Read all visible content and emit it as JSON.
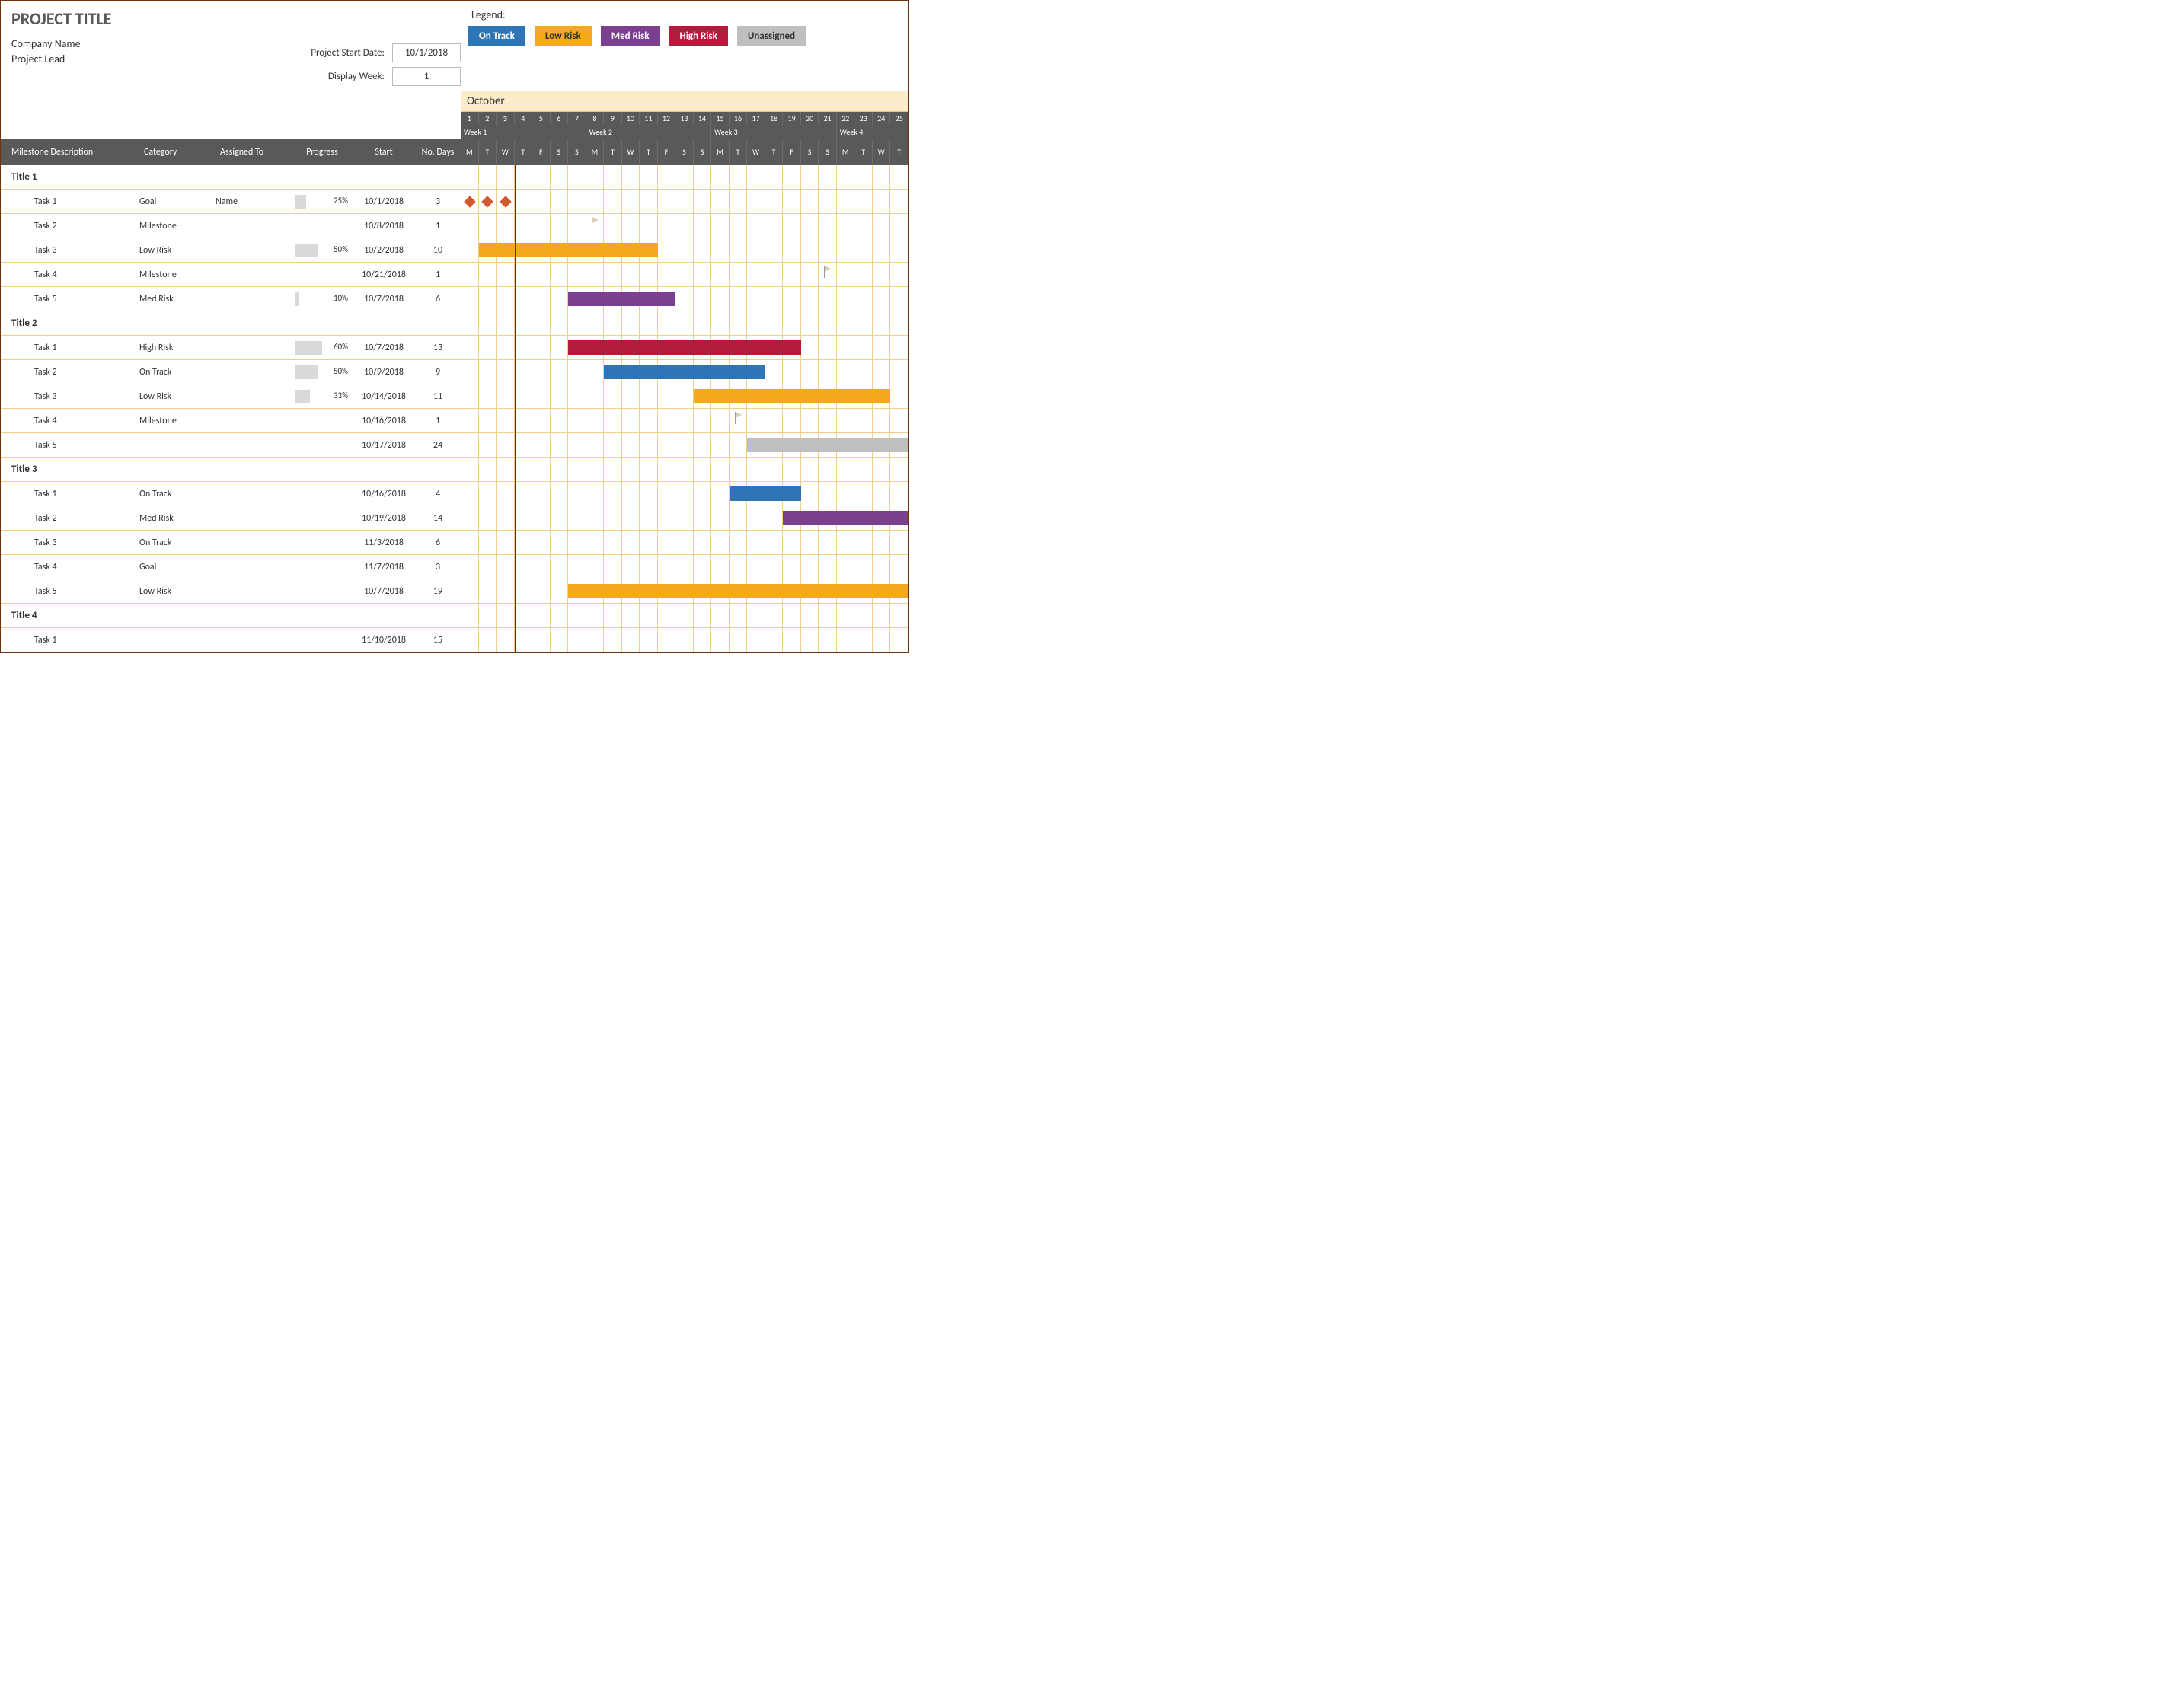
{
  "title": "PROJECT TITLE",
  "company": "Company Name",
  "lead": "Project Lead",
  "inputs": {
    "start_label": "Project Start Date:",
    "start_value": "10/1/2018",
    "week_label": "Display Week:",
    "week_value": "1"
  },
  "legend": {
    "label": "Legend:",
    "items": [
      {
        "label": "On Track",
        "color": "#2e75b6"
      },
      {
        "label": "Low Risk",
        "color": "#f4a81d",
        "text": "#333"
      },
      {
        "label": "Med Risk",
        "color": "#7b3f8f"
      },
      {
        "label": "High Risk",
        "color": "#b51a3c"
      },
      {
        "label": "Unassigned",
        "color": "#bfbfbf",
        "text": "#333"
      }
    ]
  },
  "month": "October",
  "calendar": {
    "total_days": 25,
    "today_col": 3,
    "day_nums": [
      1,
      2,
      3,
      4,
      5,
      6,
      7,
      8,
      9,
      10,
      11,
      12,
      13,
      14,
      15,
      16,
      17,
      18,
      19,
      20,
      21,
      22,
      23,
      24,
      25
    ],
    "weeks": [
      "Week 1",
      "Week 2",
      "Week 3",
      "Week 4"
    ],
    "dow": [
      "M",
      "T",
      "W",
      "T",
      "F",
      "S",
      "S",
      "M",
      "T",
      "W",
      "T",
      "F",
      "S",
      "S",
      "M",
      "T",
      "W",
      "T",
      "F",
      "S",
      "S",
      "M",
      "T",
      "W",
      "T"
    ]
  },
  "columns": {
    "desc": "Milestone Description",
    "cat": "Category",
    "assign": "Assigned To",
    "prog": "Progress",
    "start": "Start",
    "days": "No. Days"
  },
  "colors": {
    "on_track": "#2e75b6",
    "low_risk": "#f4a81d",
    "med_risk": "#7b3f8f",
    "high_risk": "#b51a3c",
    "unassigned": "#bfbfbf",
    "goal_diamond": "#d05a2e",
    "progress_bar": "#d9d9d9",
    "grid_line": "#f0d088",
    "header_bg": "#595959",
    "today_line": "#c00000"
  },
  "sections": [
    {
      "title": "Title 1",
      "tasks": [
        {
          "name": "Task 1",
          "cat": "Goal",
          "assign": "Name",
          "prog": 25,
          "start": "10/1/2018",
          "days": 3,
          "bar": {
            "type": "goal",
            "from": 1,
            "to": 3
          }
        },
        {
          "name": "Task 2",
          "cat": "Milestone",
          "assign": "",
          "prog": null,
          "start": "10/8/2018",
          "days": 1,
          "bar": {
            "type": "milestone",
            "at": 8
          }
        },
        {
          "name": "Task 3",
          "cat": "Low Risk",
          "assign": "",
          "prog": 50,
          "start": "10/2/2018",
          "days": 10,
          "bar": {
            "type": "bar",
            "color": "#f4a81d",
            "from": 2,
            "to": 11
          }
        },
        {
          "name": "Task 4",
          "cat": "Milestone",
          "assign": "",
          "prog": null,
          "start": "10/21/2018",
          "days": 1,
          "bar": {
            "type": "milestone",
            "at": 21
          }
        },
        {
          "name": "Task 5",
          "cat": "Med Risk",
          "assign": "",
          "prog": 10,
          "start": "10/7/2018",
          "days": 6,
          "bar": {
            "type": "bar",
            "color": "#7b3f8f",
            "from": 7,
            "to": 12
          }
        }
      ]
    },
    {
      "title": "Title 2",
      "tasks": [
        {
          "name": "Task 1",
          "cat": "High Risk",
          "assign": "",
          "prog": 60,
          "start": "10/7/2018",
          "days": 13,
          "bar": {
            "type": "bar",
            "color": "#b51a3c",
            "from": 7,
            "to": 19
          }
        },
        {
          "name": "Task 2",
          "cat": "On Track",
          "assign": "",
          "prog": 50,
          "start": "10/9/2018",
          "days": 9,
          "bar": {
            "type": "bar",
            "color": "#2e75b6",
            "from": 9,
            "to": 17
          }
        },
        {
          "name": "Task 3",
          "cat": "Low Risk",
          "assign": "",
          "prog": 33,
          "start": "10/14/2018",
          "days": 11,
          "bar": {
            "type": "bar",
            "color": "#f4a81d",
            "from": 14,
            "to": 24
          }
        },
        {
          "name": "Task 4",
          "cat": "Milestone",
          "assign": "",
          "prog": null,
          "start": "10/16/2018",
          "days": 1,
          "bar": {
            "type": "milestone",
            "at": 16
          }
        },
        {
          "name": "Task 5",
          "cat": "",
          "assign": "",
          "prog": null,
          "start": "10/17/2018",
          "days": 24,
          "bar": {
            "type": "bar",
            "color": "#bfbfbf",
            "from": 17,
            "to": 25
          }
        }
      ]
    },
    {
      "title": "Title 3",
      "tasks": [
        {
          "name": "Task 1",
          "cat": "On Track",
          "assign": "",
          "prog": null,
          "start": "10/16/2018",
          "days": 4,
          "bar": {
            "type": "bar",
            "color": "#2e75b6",
            "from": 16,
            "to": 19
          }
        },
        {
          "name": "Task 2",
          "cat": "Med Risk",
          "assign": "",
          "prog": null,
          "start": "10/19/2018",
          "days": 14,
          "bar": {
            "type": "bar",
            "color": "#7b3f8f",
            "from": 19,
            "to": 25
          }
        },
        {
          "name": "Task 3",
          "cat": "On Track",
          "assign": "",
          "prog": null,
          "start": "11/3/2018",
          "days": 6,
          "bar": null
        },
        {
          "name": "Task 4",
          "cat": "Goal",
          "assign": "",
          "prog": null,
          "start": "11/7/2018",
          "days": 3,
          "bar": null
        },
        {
          "name": "Task 5",
          "cat": "Low Risk",
          "assign": "",
          "prog": null,
          "start": "10/7/2018",
          "days": 19,
          "bar": {
            "type": "bar",
            "color": "#f4a81d",
            "from": 7,
            "to": 25
          }
        }
      ]
    },
    {
      "title": "Title 4",
      "tasks": [
        {
          "name": "Task 1",
          "cat": "",
          "assign": "",
          "prog": null,
          "start": "11/10/2018",
          "days": 15,
          "bar": null
        }
      ]
    }
  ]
}
